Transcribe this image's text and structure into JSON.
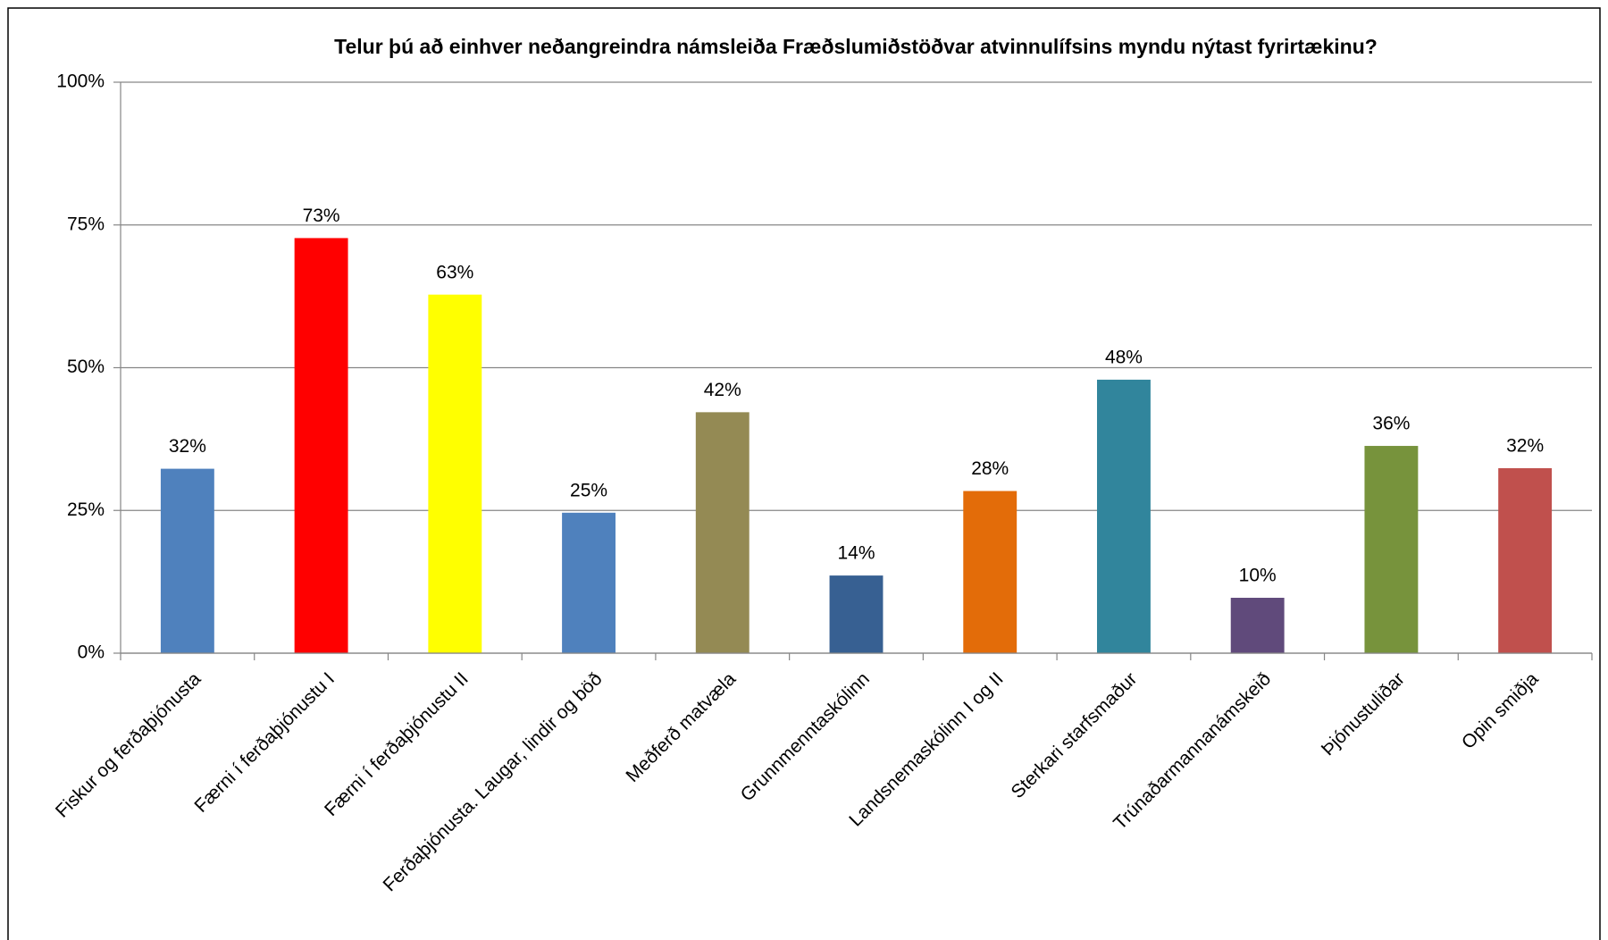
{
  "chart_data": {
    "type": "bar",
    "title": "Telur þú að einhver neðangreindra námsleiða Fræðslumiðstöðvar atvinnulífsins myndu nýtast fyrirtækinu?",
    "categories": [
      "Fiskur og ferðaþjónusta",
      "Færni í ferðaþjónustu I",
      "Færni í ferðaþjónustu II",
      "Ferðaþjónusta. Laugar, lindir og böð",
      "Meðferð matvæla",
      "Grunnmenntaskólinn",
      "Landsnemaskólinn I og II",
      "Sterkari starfsmaður",
      "Trúnaðarmannanámskeið",
      "Þjónustuliðar",
      "Opin smiðja"
    ],
    "values": [
      32.3,
      72.7,
      62.8,
      24.6,
      42.2,
      13.6,
      28.4,
      47.9,
      9.7,
      36.3,
      32.4
    ],
    "value_labels": [
      "32%",
      "73%",
      "63%",
      "25%",
      "42%",
      "14%",
      "28%",
      "48%",
      "10%",
      "36%",
      "32%"
    ],
    "colors": [
      "#4f81bd",
      "#ff0000",
      "#ffff00",
      "#4f81bd",
      "#948a54",
      "#376092",
      "#e36c09",
      "#31859c",
      "#604a7b",
      "#77933c",
      "#c0504d"
    ],
    "ylim": [
      0,
      100
    ],
    "yticks": [
      {
        "value": 0,
        "label": "0%"
      },
      {
        "value": 25,
        "label": "25%"
      },
      {
        "value": 50,
        "label": "50%"
      },
      {
        "value": 75,
        "label": "75%"
      },
      {
        "value": 100,
        "label": "100%"
      }
    ],
    "grid": true
  }
}
